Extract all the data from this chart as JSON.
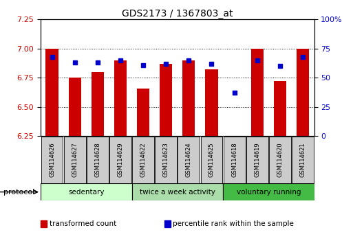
{
  "title": "GDS2173 / 1367803_at",
  "samples": [
    "GSM114626",
    "GSM114627",
    "GSM114628",
    "GSM114629",
    "GSM114622",
    "GSM114623",
    "GSM114624",
    "GSM114625",
    "GSM114618",
    "GSM114619",
    "GSM114620",
    "GSM114621"
  ],
  "groups": [
    {
      "label": "sedentary",
      "indices": [
        0,
        1,
        2,
        3
      ],
      "color": "#ccffcc"
    },
    {
      "label": "twice a week activity",
      "indices": [
        4,
        5,
        6,
        7
      ],
      "color": "#aaddaa"
    },
    {
      "label": "voluntary running",
      "indices": [
        8,
        9,
        10,
        11
      ],
      "color": "#44bb44"
    }
  ],
  "transformed_count": [
    7.0,
    6.75,
    6.8,
    6.9,
    6.66,
    6.87,
    6.9,
    6.82,
    6.25,
    7.0,
    6.72,
    7.0
  ],
  "percentile_rank": [
    68,
    63,
    63,
    65,
    61,
    62,
    65,
    62,
    37,
    65,
    60,
    68
  ],
  "ylim_left": [
    6.25,
    7.25
  ],
  "ylim_right": [
    0,
    100
  ],
  "yticks_left": [
    6.25,
    6.5,
    6.75,
    7.0,
    7.25
  ],
  "yticks_right": [
    0,
    25,
    50,
    75,
    100
  ],
  "bar_color": "#cc0000",
  "dot_color": "#0000cc",
  "bar_width": 0.55,
  "bar_bottom": 6.25,
  "legend_items": [
    {
      "color": "#cc0000",
      "label": "transformed count"
    },
    {
      "color": "#0000cc",
      "label": "percentile rank within the sample"
    }
  ]
}
